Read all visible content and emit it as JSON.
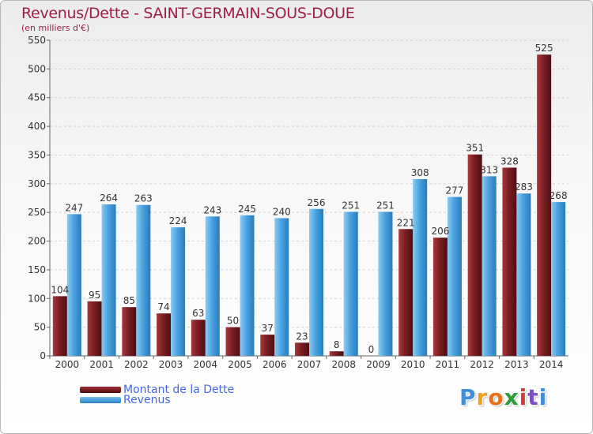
{
  "title": "Revenus/Dette - SAINT-GERMAIN-SOUS-DOUE",
  "subtitle": "(en milliers d'€)",
  "legend": {
    "debt_label": "Montant de la Dette",
    "revenue_label": "Revenus"
  },
  "logo": {
    "letters": [
      "P",
      "r",
      "o",
      "x",
      "i",
      "t",
      "i"
    ],
    "colors": [
      "#3f8fd8",
      "#f0a020",
      "#e8701a",
      "#2e9c3c",
      "#d43c3c",
      "#7a4fbf",
      "#3f8fd8"
    ]
  },
  "colors": {
    "debt": "#7a1e22",
    "revenue": "#4aa3e0",
    "title": "#9e1d4b",
    "legend_text": "#4466ee"
  },
  "chart_data": {
    "type": "bar",
    "categories": [
      "2000",
      "2001",
      "2002",
      "2003",
      "2004",
      "2005",
      "2006",
      "2007",
      "2008",
      "2009",
      "2010",
      "2011",
      "2012",
      "2013",
      "2014"
    ],
    "series": [
      {
        "name": "Montant de la Dette",
        "values": [
          104,
          95,
          85,
          74,
          63,
          50,
          37,
          23,
          8,
          0,
          221,
          206,
          351,
          328,
          525
        ]
      },
      {
        "name": "Revenus",
        "values": [
          247,
          264,
          263,
          224,
          243,
          245,
          240,
          256,
          251,
          251,
          308,
          277,
          313,
          283,
          268
        ]
      }
    ],
    "ylim": [
      0,
      550
    ],
    "yticks": [
      0,
      50,
      100,
      150,
      200,
      250,
      300,
      350,
      400,
      450,
      500,
      550
    ],
    "grid": true,
    "legend_position": "bottom-left"
  }
}
